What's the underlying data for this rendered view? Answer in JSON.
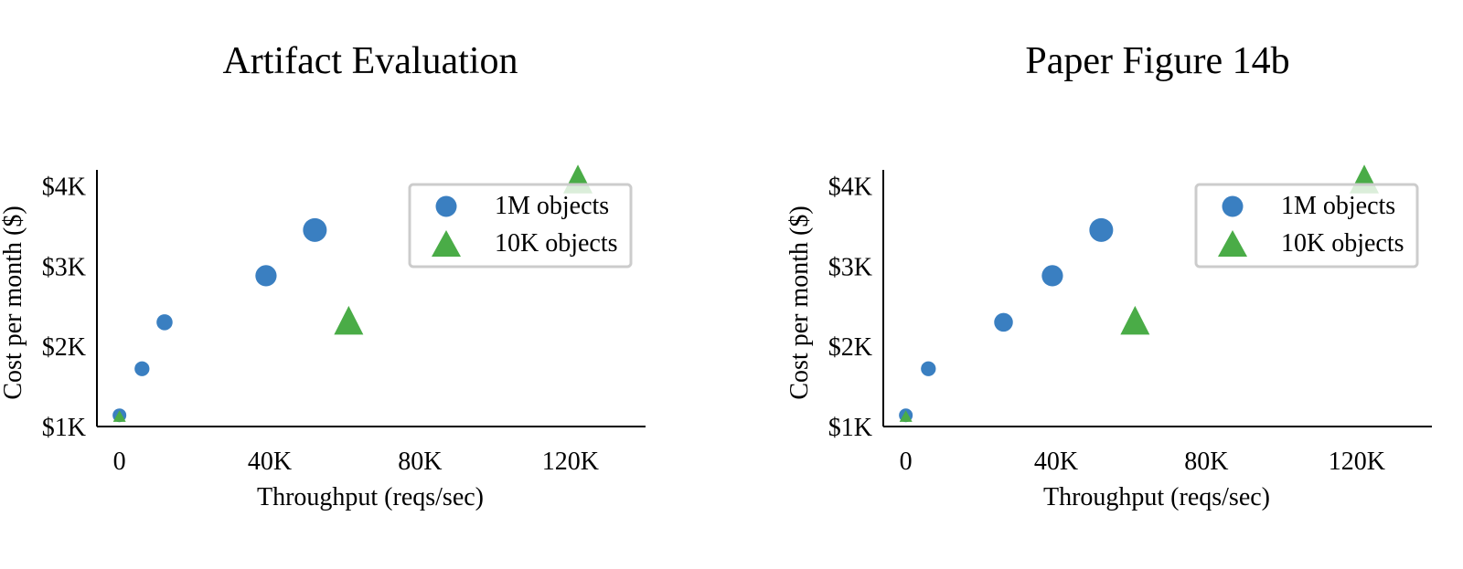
{
  "chart_data": [
    {
      "type": "scatter",
      "title": "Artifact Evaluation",
      "xlabel": "Throughput (reqs/sec)",
      "ylabel": "Cost per month ($)",
      "xlim": [
        -6000,
        140000
      ],
      "ylim": [
        1000,
        4200
      ],
      "xticks": [
        0,
        40000,
        80000,
        120000
      ],
      "xtick_labels": [
        "0",
        "40K",
        "80K",
        "120K"
      ],
      "yticks": [
        1000,
        2000,
        3000,
        4000
      ],
      "ytick_labels": [
        "$1K",
        "$2K",
        "$3K",
        "$4K"
      ],
      "grid": false,
      "legend_position": "upper right",
      "series": [
        {
          "name": "1M objects",
          "marker": "circle",
          "color": "#3a7fc1",
          "x": [
            0,
            6000,
            12000,
            39000,
            52000
          ],
          "y": [
            1140,
            1720,
            2300,
            2880,
            3450
          ]
        },
        {
          "name": "10K objects",
          "marker": "triangle",
          "color": "#4aac47",
          "x": [
            0,
            61000,
            122000
          ],
          "y": [
            1120,
            2300,
            4060
          ]
        }
      ]
    },
    {
      "type": "scatter",
      "title": "Paper Figure 14b",
      "xlabel": "Throughput (reqs/sec)",
      "ylabel": "Cost per month ($)",
      "xlim": [
        -6000,
        140000
      ],
      "ylim": [
        1000,
        4200
      ],
      "xticks": [
        0,
        40000,
        80000,
        120000
      ],
      "xtick_labels": [
        "0",
        "40K",
        "80K",
        "120K"
      ],
      "yticks": [
        1000,
        2000,
        3000,
        4000
      ],
      "ytick_labels": [
        "$1K",
        "$2K",
        "$3K",
        "$4K"
      ],
      "grid": false,
      "legend_position": "upper right",
      "series": [
        {
          "name": "1M objects",
          "marker": "circle",
          "color": "#3a7fc1",
          "x": [
            0,
            6000,
            26000,
            39000,
            52000
          ],
          "y": [
            1140,
            1720,
            2300,
            2880,
            3450
          ]
        },
        {
          "name": "10K objects",
          "marker": "triangle",
          "color": "#4aac47",
          "x": [
            0,
            61000,
            122000
          ],
          "y": [
            1120,
            2300,
            4060
          ]
        }
      ]
    }
  ]
}
